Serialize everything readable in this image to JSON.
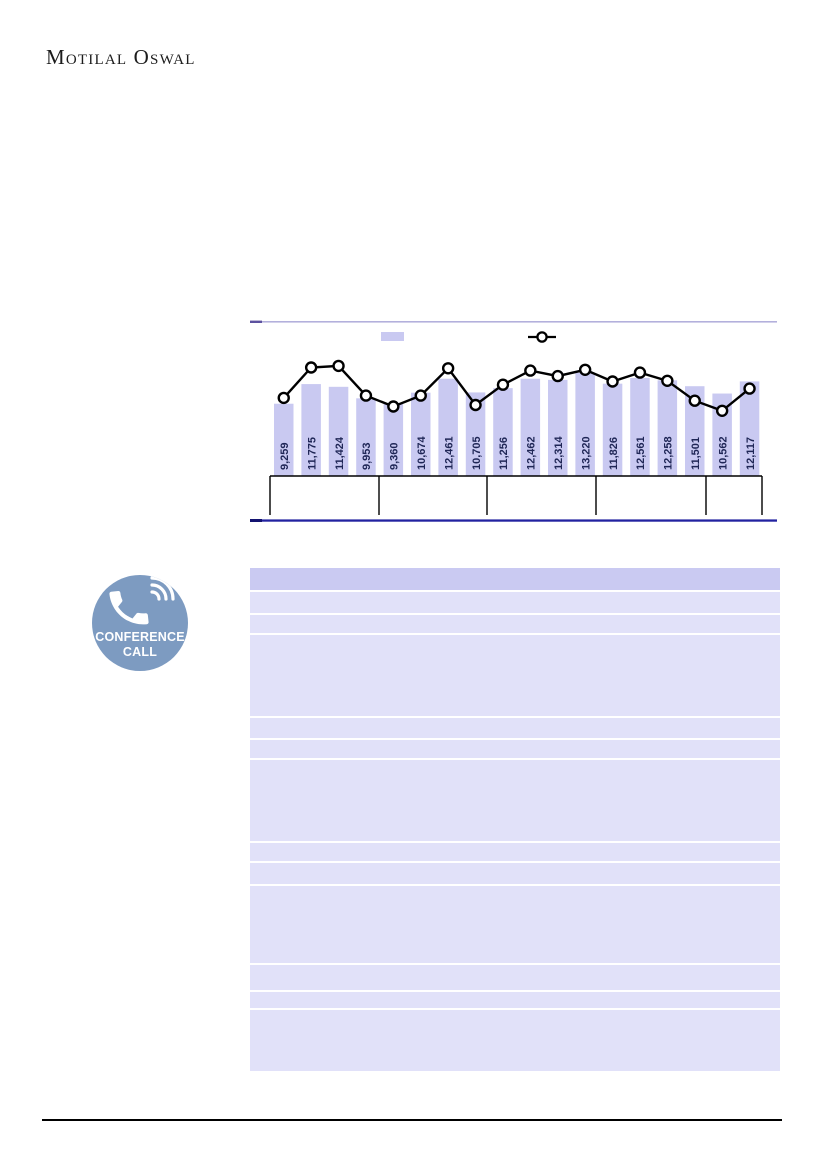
{
  "logo": {
    "text": "Motilal Oswal"
  },
  "colors": {
    "bar_fill": "#c9c9f1",
    "line_stroke": "#000000",
    "marker_fill": "#ffffff",
    "bar_label_text": "#1f2656",
    "divider_top": "#b3b0dc",
    "divider_top_cap": "#5c519f",
    "divider_bottom": "#2222a0",
    "divider_bottom_cap": "#131370",
    "axis_line": "#000000",
    "table_header_bg": "#cacaf2",
    "table_row_bg": "#e1e1f9",
    "badge_bg": "#7d9bc1",
    "bottom_rule": "#000000"
  },
  "chart_data": {
    "type": "bar+line",
    "title": "",
    "xlabel": "",
    "ylabel": "",
    "ylim": [
      0,
      15500
    ],
    "grid": false,
    "legend_position": "top",
    "legend": {
      "bar_label": "",
      "line_label": ""
    },
    "bar_labels": [
      "9,259",
      "11,775",
      "11,424",
      "9,953",
      "9,360",
      "10,674",
      "12,461",
      "10,705",
      "11,256",
      "12,462",
      "12,314",
      "13,220",
      "11,826",
      "12,561",
      "12,258",
      "11,501",
      "10,562",
      "12,117"
    ],
    "series": [
      {
        "name": "bars",
        "type": "bar",
        "values": [
          9259,
          11775,
          11424,
          9953,
          9360,
          10674,
          12461,
          10705,
          11256,
          12462,
          12314,
          13220,
          11826,
          12561,
          12258,
          11501,
          10562,
          12117
        ]
      },
      {
        "name": "line-markers (unlabeled, values estimated from pixels)",
        "type": "line",
        "values": [
          10000,
          13900,
          14100,
          10300,
          8900,
          10300,
          13800,
          9100,
          11700,
          13500,
          12800,
          13600,
          12100,
          13250,
          12200,
          9650,
          8350,
          11200
        ]
      }
    ],
    "axis_groups": [
      {
        "label": "",
        "bar_count": 4
      },
      {
        "label": "",
        "bar_count": 4
      },
      {
        "label": "",
        "bar_count": 4
      },
      {
        "label": "",
        "bar_count": 4
      },
      {
        "label": "",
        "bar_count": 2
      }
    ]
  },
  "conference_badge": {
    "line1": "CONFERENCE",
    "line2": "CALL"
  },
  "table": {
    "header_cells_visible_text": [],
    "rows_visible_text": []
  }
}
